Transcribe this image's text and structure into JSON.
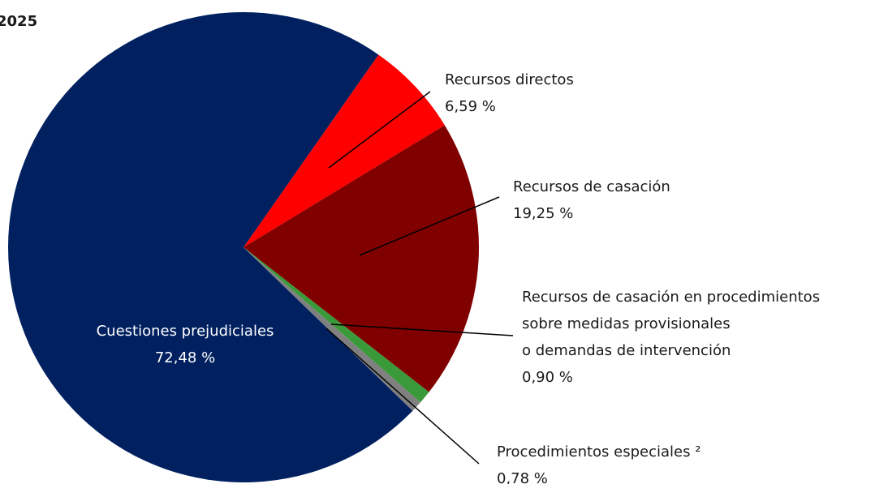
{
  "chart_data": {
    "type": "pie",
    "title": "2025",
    "categories": [
      [
        "Recursos directos"
      ],
      [
        "Recursos de casación"
      ],
      [
        "Recursos de casación en procedimientos",
        "sobre medidas provisionales",
        "o demandas de intervención"
      ],
      [
        "Procedimientos especiales ²"
      ],
      [
        "Cuestiones prejudiciales"
      ]
    ],
    "values": [
      6.59,
      19.25,
      0.9,
      0.78,
      72.48
    ],
    "value_labels": [
      "6,59 %",
      "19,25 %",
      "0,90 %",
      "0,78 %",
      "72,48 %"
    ],
    "colors": [
      "#ff0000",
      "#800000",
      "#3a9a3a",
      "#808080",
      "#002060"
    ]
  }
}
